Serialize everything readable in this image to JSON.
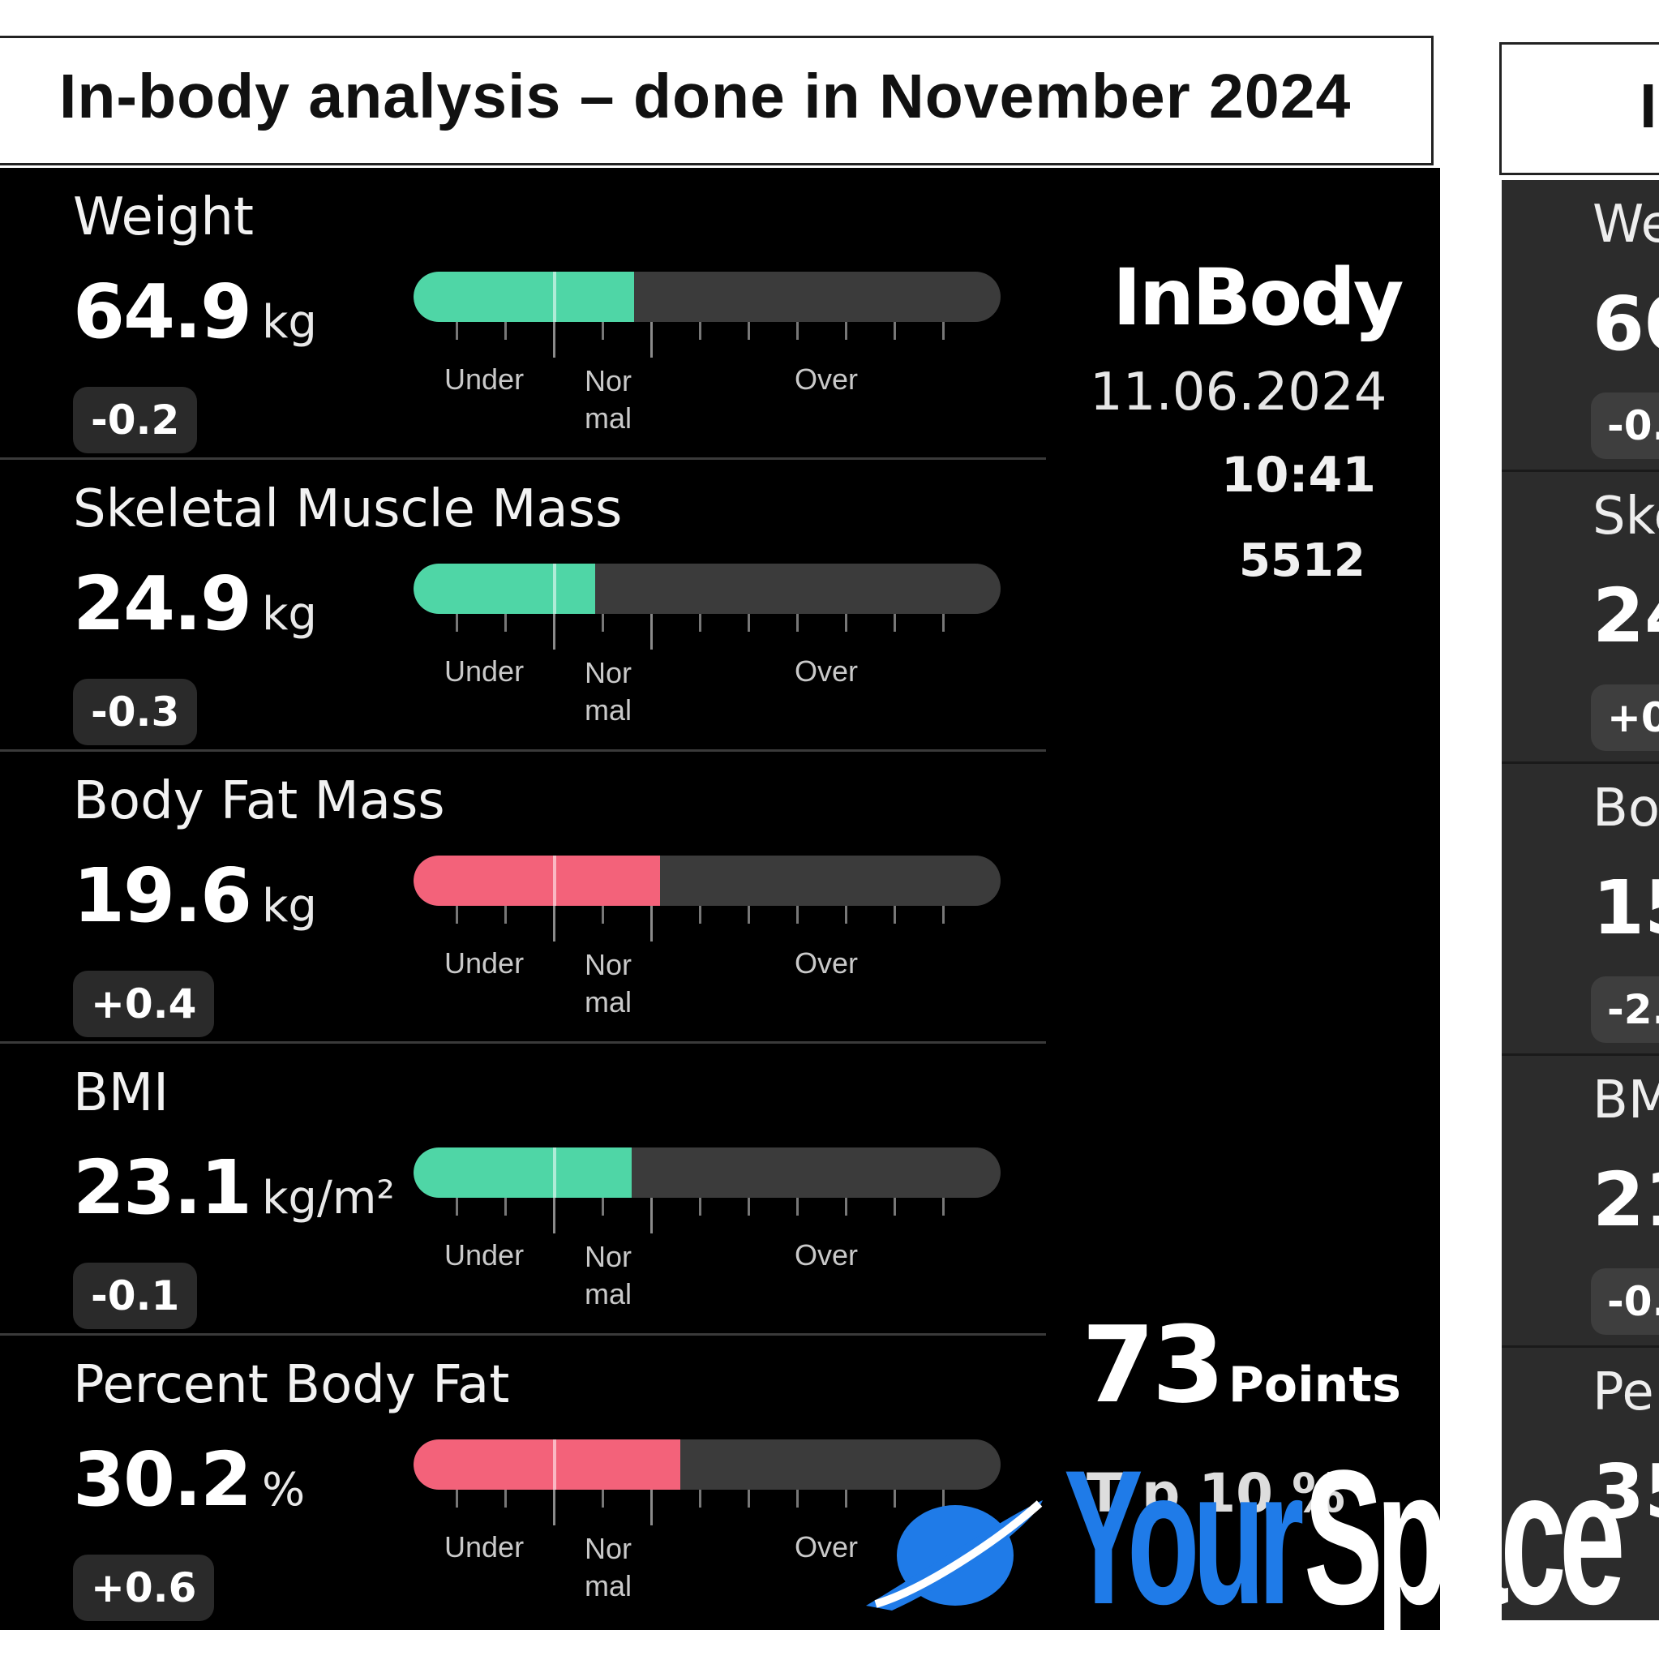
{
  "header": {
    "title": "In-body analysis – done in November 2024",
    "title2_fragment": "I"
  },
  "metrics": [
    {
      "label": "Weight",
      "value": "64.9",
      "unit": "kg",
      "change": "-0.2",
      "fill_fraction": 0.375,
      "color": "#4fd6a6"
    },
    {
      "label": "Skeletal Muscle Mass",
      "value": "24.9",
      "unit": "kg",
      "change": "-0.3",
      "fill_fraction": 0.31,
      "color": "#4fd6a6"
    },
    {
      "label": "Body Fat Mass",
      "value": "19.6",
      "unit": "kg",
      "change": "+0.4",
      "fill_fraction": 0.42,
      "color": "#f3627a"
    },
    {
      "label": "BMI",
      "value": "23.1",
      "unit": "kg/m²",
      "change": "-0.1",
      "fill_fraction": 0.372,
      "color": "#4fd6a6"
    },
    {
      "label": "Percent Body Fat",
      "value": "30.2",
      "unit": "%",
      "change": "+0.6",
      "fill_fraction": 0.455,
      "color": "#f3627a"
    }
  ],
  "zones": {
    "under": "Under",
    "normal": "Nor\nmal",
    "over": "Over"
  },
  "device": {
    "brand": "InBody",
    "date": "11.06.2024",
    "time": "10:41",
    "id": "5512"
  },
  "score": {
    "value": "73",
    "unit": "Points"
  },
  "score_obscured_text": "T p 10 %",
  "panel2": {
    "labels": [
      "We",
      "Ske",
      "Bo",
      "BM",
      "Pe"
    ],
    "values": [
      "60",
      "24",
      "15",
      "21",
      "35"
    ],
    "changes": [
      "-0.",
      "+0",
      "-2.",
      "-0.",
      ""
    ]
  },
  "watermark": {
    "part1": "Your",
    "part2": "Space"
  },
  "colors": {
    "good": "#4fd6a6",
    "bad": "#f3627a",
    "track": "#3b3b3b",
    "panel_bg": "#000000",
    "brand_blue": "#1f7be8"
  }
}
